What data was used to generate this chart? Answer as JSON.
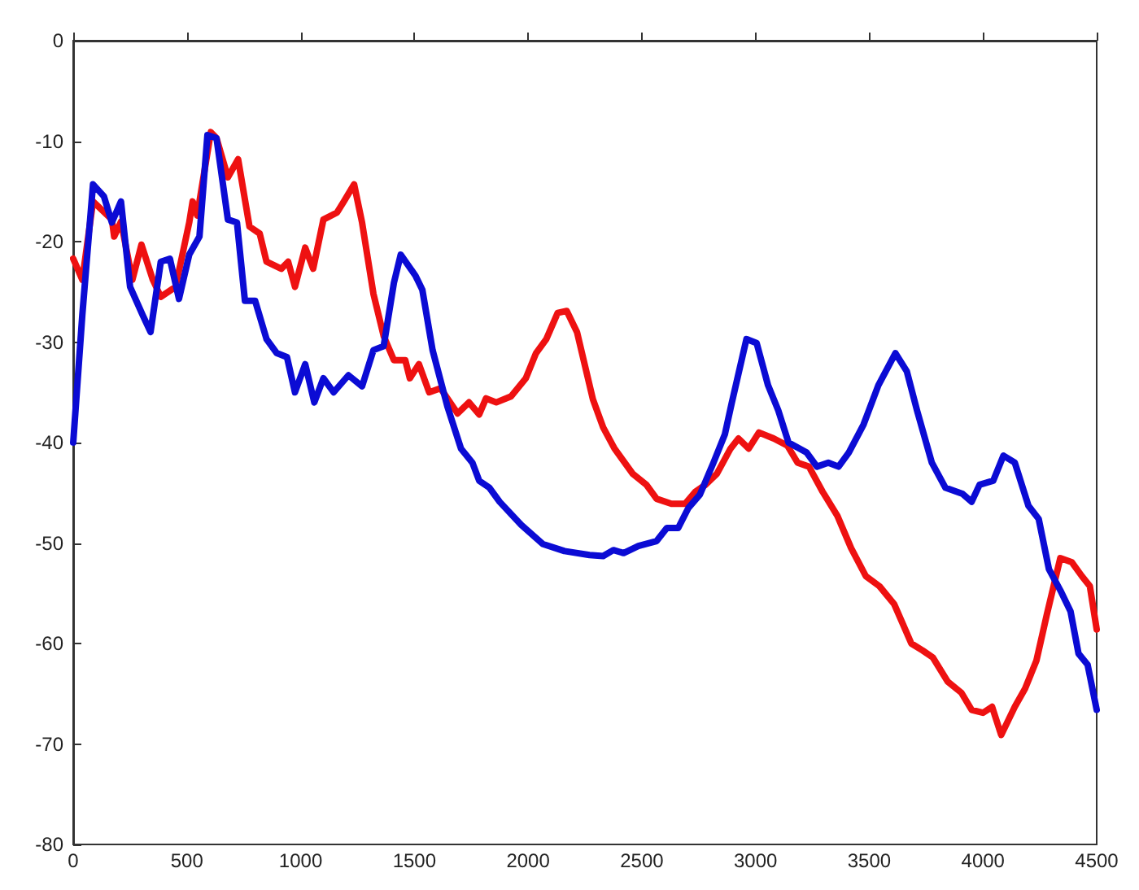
{
  "chart_data": {
    "type": "line",
    "xlim": [
      0,
      4500
    ],
    "xticks": [
      0,
      500,
      1000,
      1500,
      2000,
      2500,
      3000,
      3500,
      4000,
      4500
    ],
    "ylim": [
      -80,
      0
    ],
    "yticks": [
      -80,
      -70,
      -60,
      -50,
      -40,
      -30,
      -20,
      -10,
      0
    ],
    "grid": false,
    "marker": "none",
    "line_style": "solid",
    "series": [
      {
        "color": "#ee1111",
        "x": [
          0,
          40,
          87,
          170,
          180,
          210,
          260,
          300,
          350,
          385,
          450,
          510,
          525,
          545,
          605,
          630,
          680,
          725,
          775,
          820,
          850,
          915,
          945,
          975,
          1020,
          1055,
          1100,
          1160,
          1190,
          1235,
          1270,
          1320,
          1365,
          1410,
          1460,
          1480,
          1520,
          1565,
          1615,
          1690,
          1740,
          1785,
          1815,
          1860,
          1925,
          1990,
          2035,
          2080,
          2130,
          2170,
          2215,
          2285,
          2330,
          2380,
          2460,
          2520,
          2565,
          2630,
          2690,
          2735,
          2780,
          2830,
          2890,
          2925,
          2970,
          3015,
          3080,
          3140,
          3185,
          3235,
          3295,
          3360,
          3420,
          3485,
          3545,
          3610,
          3685,
          3735,
          3780,
          3845,
          3905,
          3950,
          4000,
          4040,
          4080,
          4140,
          4185,
          4235,
          4280,
          4340,
          4390,
          4435,
          4470,
          4500
        ],
        "values": [
          -21.7,
          -23.8,
          -16,
          -17.8,
          -19.5,
          -18,
          -23.8,
          -20.3,
          -23.8,
          -25.5,
          -24.5,
          -18.1,
          -16,
          -17.4,
          -9.1,
          -9.7,
          -13.6,
          -11.8,
          -18.5,
          -19.2,
          -22,
          -22.7,
          -22,
          -24.5,
          -20.6,
          -22.7,
          -17.8,
          -17.1,
          -16,
          -14.3,
          -18.1,
          -25.2,
          -29.4,
          -31.8,
          -31.8,
          -33.6,
          -32.2,
          -35,
          -34.6,
          -37.1,
          -36,
          -37.2,
          -35.6,
          -36,
          -35.4,
          -33.6,
          -31.1,
          -29.7,
          -27.1,
          -26.9,
          -29,
          -35.7,
          -38.5,
          -40.6,
          -43.1,
          -44.2,
          -45.6,
          -46.1,
          -46.1,
          -44.9,
          -44.2,
          -43.1,
          -40.6,
          -39.6,
          -40.6,
          -39,
          -39.6,
          -40.3,
          -42,
          -42.4,
          -44.9,
          -47.3,
          -50.5,
          -53.3,
          -54.3,
          -56.1,
          -60,
          -60.7,
          -61.4,
          -63.8,
          -64.9,
          -66.6,
          -66.9,
          -66.3,
          -69.1,
          -66.3,
          -64.5,
          -61.7,
          -57.2,
          -51.5,
          -51.9,
          -53.3,
          -54.3,
          -58.6
        ]
      },
      {
        "color": "#0b0bd4",
        "x": [
          0,
          40,
          87,
          135,
          170,
          210,
          250,
          305,
          340,
          385,
          425,
          465,
          510,
          555,
          590,
          630,
          680,
          720,
          755,
          800,
          850,
          895,
          940,
          975,
          1020,
          1060,
          1100,
          1145,
          1210,
          1270,
          1320,
          1365,
          1410,
          1440,
          1505,
          1535,
          1580,
          1645,
          1705,
          1755,
          1785,
          1830,
          1875,
          1970,
          2065,
          2160,
          2270,
          2330,
          2375,
          2420,
          2485,
          2565,
          2610,
          2660,
          2705,
          2755,
          2815,
          2865,
          2895,
          2960,
          3005,
          3055,
          3100,
          3145,
          3225,
          3270,
          3320,
          3365,
          3410,
          3475,
          3540,
          3615,
          3665,
          3710,
          3775,
          3835,
          3910,
          3950,
          3985,
          4045,
          4090,
          4140,
          4200,
          4245,
          4290,
          4340,
          4385,
          4420,
          4460,
          4500
        ],
        "values": [
          -40,
          -27.3,
          -14.3,
          -15.5,
          -18.1,
          -16,
          -24.5,
          -27.3,
          -29,
          -22,
          -21.7,
          -25.7,
          -21.3,
          -19.5,
          -9.4,
          -9.7,
          -17.8,
          -18.1,
          -25.9,
          -25.9,
          -29.7,
          -31.1,
          -31.5,
          -35,
          -32.2,
          -36,
          -33.6,
          -35,
          -33.3,
          -34.4,
          -30.8,
          -30.4,
          -24.1,
          -21.3,
          -23.4,
          -24.8,
          -30.8,
          -36.4,
          -40.6,
          -42,
          -43.8,
          -44.5,
          -45.9,
          -48.2,
          -50.1,
          -50.8,
          -51.2,
          -51.3,
          -50.7,
          -51,
          -50.3,
          -49.8,
          -48.5,
          -48.5,
          -46.5,
          -45.2,
          -42,
          -39.2,
          -36.1,
          -29.7,
          -30.1,
          -34.3,
          -36.8,
          -40,
          -41,
          -42.4,
          -42,
          -42.4,
          -41,
          -38.2,
          -34.3,
          -31.1,
          -32.9,
          -36.8,
          -42,
          -44.5,
          -45.1,
          -45.9,
          -44.2,
          -43.8,
          -41.3,
          -42,
          -46.3,
          -47.6,
          -52.6,
          -54.7,
          -56.8,
          -61,
          -62.1,
          -66.6
        ]
      }
    ]
  }
}
